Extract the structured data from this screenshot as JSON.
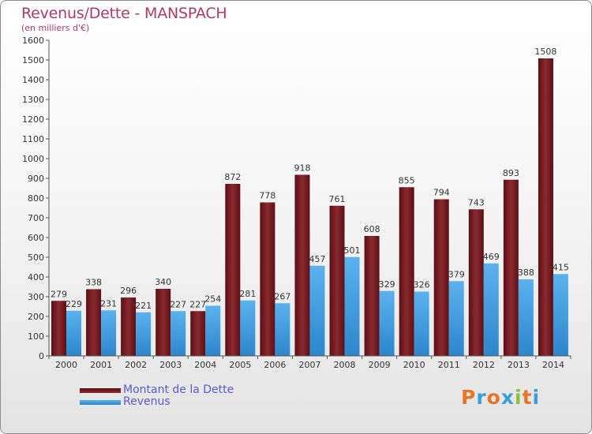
{
  "chart_data": {
    "type": "bar",
    "title": "Revenus/Dette - MANSPACH",
    "subtitle": "(en milliers d'€)",
    "xlabel": "",
    "ylabel": "",
    "ylim": [
      0,
      1600
    ],
    "ytick_step": 100,
    "categories": [
      "2000",
      "2001",
      "2002",
      "2003",
      "2004",
      "2005",
      "2006",
      "2007",
      "2008",
      "2009",
      "2010",
      "2011",
      "2012",
      "2013",
      "2014"
    ],
    "series": [
      {
        "name": "Montant de la Dette",
        "color": "#7a1c22",
        "values": [
          279,
          338,
          296,
          340,
          227,
          872,
          778,
          918,
          761,
          608,
          855,
          794,
          743,
          893,
          1508
        ]
      },
      {
        "name": "Revenus",
        "color": "#3f9bdf",
        "values": [
          229,
          231,
          221,
          227,
          254,
          281,
          267,
          457,
          501,
          329,
          326,
          379,
          469,
          388,
          415
        ]
      }
    ],
    "grid": false,
    "legend": "bottom-left"
  },
  "logo": {
    "letters": [
      "P",
      "r",
      "o",
      "x",
      "i",
      "t",
      "i"
    ],
    "colors": [
      "#e8752a",
      "#3a9ed9",
      "#e8752a",
      "#3a9ed9",
      "#8bbf3f",
      "#e8752a",
      "#3a9ed9"
    ]
  }
}
